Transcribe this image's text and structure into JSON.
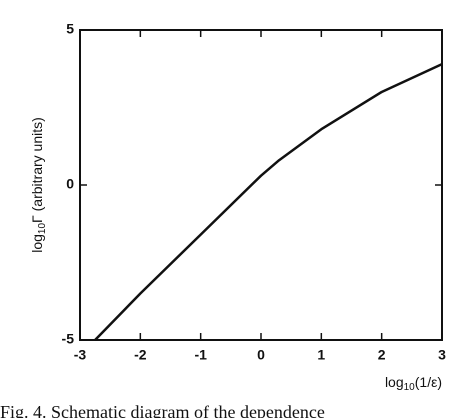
{
  "chart_data": {
    "type": "line",
    "x": [
      -2.75,
      -2,
      -1,
      0,
      0.3,
      1,
      2,
      3
    ],
    "series": [
      {
        "color": "#111111",
        "values": [
          -5,
          -3.5,
          -1.6,
          0.3,
          0.8,
          1.8,
          3.0,
          3.9
        ]
      }
    ],
    "xlim": [
      -3,
      3
    ],
    "xticks": [
      -3,
      -2,
      -1,
      0,
      1,
      2,
      3
    ],
    "ylim": [
      -5,
      5
    ],
    "yticks": [
      -5,
      0,
      5
    ],
    "xlabel": {
      "base": "log",
      "sub": "10",
      "rest": "(1/ε)"
    },
    "ylabel": {
      "base": "log",
      "sub": "10",
      "rest": "Γ (arbitrary units)"
    },
    "caption": "Fig. 4. Schematic diagram of the dependence"
  }
}
